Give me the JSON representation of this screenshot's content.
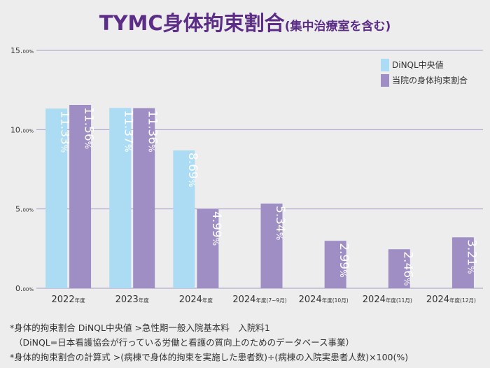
{
  "title": {
    "main": "TYMC身体拘束割合",
    "sub": "(集中治療室を含む)"
  },
  "colors": {
    "dinql": "#abdcf3",
    "hospital": "#9f8ec3",
    "gridline": "#a79ac7",
    "title": "#5b2d86"
  },
  "chart_data": {
    "type": "bar",
    "title": "TYMC身体拘束割合(集中治療室を含む)",
    "ylim": [
      0,
      15
    ],
    "yticks": [
      {
        "value": 0,
        "label_main": "0.",
        "label_sub": "00%"
      },
      {
        "value": 5,
        "label_main": "5.",
        "label_sub": "00%"
      },
      {
        "value": 10,
        "label_main": "10.",
        "label_sub": "00%"
      },
      {
        "value": 15,
        "label_main": "15.",
        "label_sub": "00%"
      }
    ],
    "grid": true,
    "legend_position": "top-right",
    "categories": [
      {
        "main": "2022",
        "suffix": "年度"
      },
      {
        "main": "2023",
        "suffix": "年度"
      },
      {
        "main": "2024",
        "suffix": "年度"
      },
      {
        "main": "2024",
        "suffix": "年度(7~9月)"
      },
      {
        "main": "2024",
        "suffix": "年度(10月)"
      },
      {
        "main": "2024",
        "suffix": "年度(11月)"
      },
      {
        "main": "2024",
        "suffix": "年度(12月)"
      }
    ],
    "series": [
      {
        "name": "DiNQL中央値",
        "values": [
          11.33,
          11.37,
          8.69,
          null,
          null,
          null,
          null
        ],
        "labels_main": [
          "11.33",
          "11.37",
          "8.69",
          null,
          null,
          null,
          null
        ]
      },
      {
        "name": "当院の身体拘束割合",
        "values": [
          11.56,
          11.36,
          4.99,
          5.34,
          2.99,
          2.46,
          3.21
        ],
        "labels_main": [
          "11.56",
          "11.36",
          "4.99",
          "5.34",
          "2.99",
          "2.46",
          "3.21"
        ]
      }
    ],
    "value_suffix": "%"
  },
  "footnotes": [
    "*身体的拘束割合 DiNQL中央値 >急性期一般入院基本料　入院料1",
    "（DiNQL=日本看護協会が行っている労働と看護の質向上のためのデータベース事業）",
    "*身体的拘束割合の計算式 >(病棟で身体的拘束を実施した患者数)÷(病棟の入院実患者人数)×100(%)"
  ]
}
